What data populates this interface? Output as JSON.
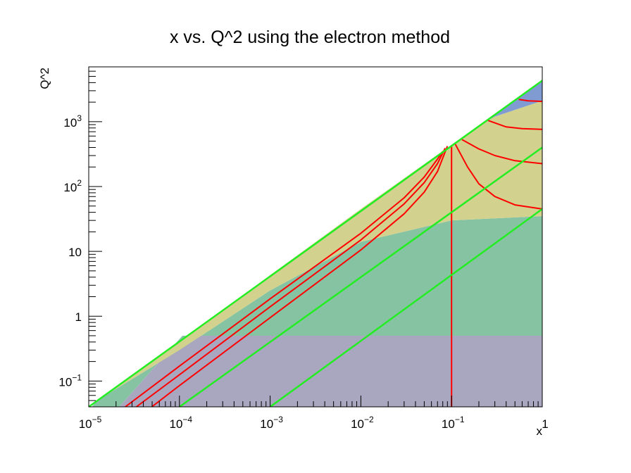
{
  "chart_data": {
    "type": "area",
    "title": "x vs. Q^2 using the electron method",
    "xlabel": "x",
    "ylabel": "Q^2",
    "xscale": "log",
    "yscale": "log",
    "xlim": [
      1e-05,
      1
    ],
    "ylim": [
      0.04,
      7000
    ],
    "grid": false,
    "x_ticks": [
      {
        "value": 1e-05,
        "base": "10",
        "exp": "−5"
      },
      {
        "value": 0.0001,
        "base": "10",
        "exp": "−4"
      },
      {
        "value": 0.001,
        "base": "10",
        "exp": "−3"
      },
      {
        "value": 0.01,
        "base": "10",
        "exp": "−2"
      },
      {
        "value": 0.1,
        "base": "10",
        "exp": "−1"
      },
      {
        "value": 1,
        "base": "1",
        "exp": ""
      }
    ],
    "y_ticks": [
      {
        "value": 0.1,
        "base": "10",
        "exp": "−1"
      },
      {
        "value": 1,
        "base": "1",
        "exp": ""
      },
      {
        "value": 10,
        "base": "10",
        "exp": ""
      },
      {
        "value": 100,
        "base": "10",
        "exp": "2"
      },
      {
        "value": 1000,
        "base": "10",
        "exp": "3"
      }
    ],
    "regions": [
      {
        "color": "#a9a6c0",
        "polygon": [
          [
            2.17e-05,
            0.04
          ],
          [
            0.000108,
            0.5
          ],
          [
            1,
            0.5
          ],
          [
            1,
            0.04
          ]
        ]
      },
      {
        "color": "#86c3a2",
        "polygon": [
          [
            1.08e-05,
            0.04
          ],
          [
            1.23e-05,
            0.05
          ],
          [
            0.0001,
            0.3
          ],
          [
            0.001,
            2.5
          ],
          [
            0.01,
            14
          ],
          [
            0.1,
            30
          ],
          [
            1,
            35
          ],
          [
            1,
            0.5
          ],
          [
            0.000108,
            0.5
          ],
          [
            2.17e-05,
            0.04
          ]
        ]
      },
      {
        "color": "#d3d18e",
        "polygon": [
          [
            1.23e-05,
            0.05
          ],
          [
            0.0001,
            0.4
          ],
          [
            0.001,
            4.3
          ],
          [
            0.01,
            45
          ],
          [
            0.1,
            440
          ],
          [
            0.2,
            870
          ],
          [
            0.3,
            1200
          ],
          [
            1,
            2100
          ],
          [
            1,
            35
          ],
          [
            0.1,
            30
          ],
          [
            0.01,
            14
          ],
          [
            0.001,
            2.5
          ],
          [
            0.0001,
            0.3
          ]
        ]
      },
      {
        "color": "#7f9bd2",
        "polygon": [
          [
            0.2,
            870
          ],
          [
            0.3,
            1200
          ],
          [
            1,
            2100
          ],
          [
            1,
            4300
          ]
        ]
      }
    ],
    "green_lines": [
      {
        "points": [
          [
            1e-05,
            0.04
          ],
          [
            1,
            4300
          ]
        ]
      },
      {
        "points": [
          [
            0.0001,
            0.04
          ],
          [
            1,
            400
          ]
        ]
      },
      {
        "points": [
          [
            0.001,
            0.04
          ],
          [
            1,
            45
          ]
        ]
      }
    ],
    "red_curves": [
      {
        "points": [
          [
            2.53e-05,
            0.04
          ],
          [
            0.0001,
            0.17
          ],
          [
            0.001,
            1.85
          ],
          [
            0.01,
            19
          ],
          [
            0.03,
            67
          ],
          [
            0.05,
            140
          ],
          [
            0.07,
            265
          ],
          [
            0.08,
            350
          ]
        ]
      },
      {
        "points": [
          [
            3.35e-05,
            0.04
          ],
          [
            0.0001,
            0.125
          ],
          [
            0.001,
            1.4
          ],
          [
            0.01,
            15
          ],
          [
            0.03,
            54
          ],
          [
            0.05,
            115
          ],
          [
            0.07,
            225
          ],
          [
            0.085,
            390
          ]
        ]
      },
      {
        "points": [
          [
            4.95e-05,
            0.04
          ],
          [
            0.0001,
            0.085
          ],
          [
            0.001,
            0.95
          ],
          [
            0.01,
            10.5
          ],
          [
            0.03,
            38
          ],
          [
            0.05,
            82
          ],
          [
            0.07,
            170
          ],
          [
            0.09,
            420
          ]
        ]
      },
      {
        "points": [
          [
            0.1,
            0.04
          ],
          [
            0.1,
            420
          ]
        ]
      },
      {
        "points": [
          [
            0.11,
            450
          ],
          [
            0.15,
            200
          ],
          [
            0.2,
            110
          ],
          [
            0.3,
            70
          ],
          [
            0.5,
            52
          ],
          [
            1,
            45
          ]
        ]
      },
      {
        "points": [
          [
            0.13,
            530
          ],
          [
            0.2,
            380
          ],
          [
            0.3,
            300
          ],
          [
            0.5,
            250
          ],
          [
            1,
            225
          ]
        ]
      },
      {
        "points": [
          [
            0.25,
            1050
          ],
          [
            0.4,
            830
          ],
          [
            0.6,
            780
          ],
          [
            1,
            760
          ]
        ]
      },
      {
        "points": [
          [
            0.55,
            2200
          ],
          [
            0.7,
            2100
          ],
          [
            1,
            2050
          ]
        ]
      }
    ]
  }
}
